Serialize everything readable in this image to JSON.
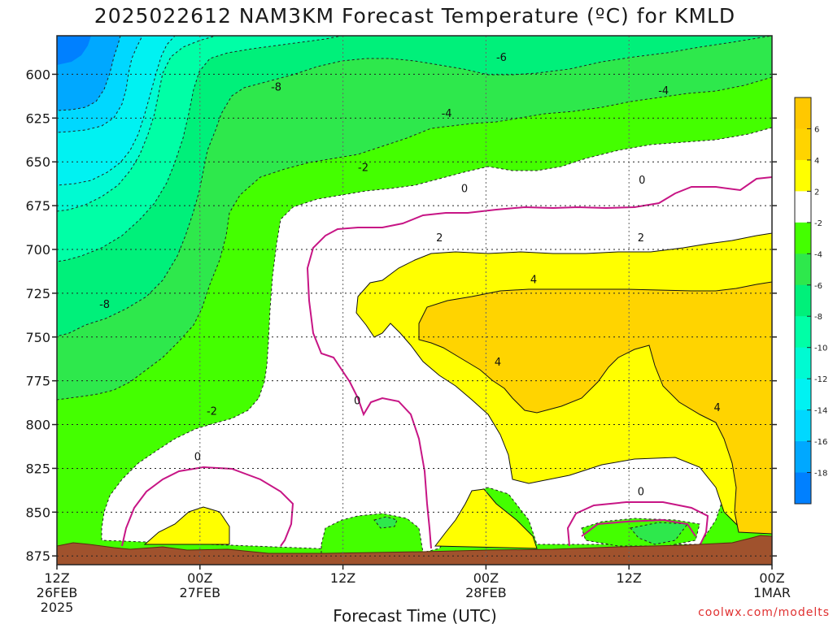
{
  "chart_data": {
    "type": "filled-contour",
    "title": "2025022612  NAM3KM Forecast Temperature (ºC) for KMLD",
    "xlabel": "Forecast Time (UTC)",
    "ylabel": "",
    "credit": "coolwx.com/modelts",
    "y_axis": {
      "scale": "pressure",
      "ylim": [
        880,
        578
      ],
      "ticks": [
        "600",
        "625",
        "650",
        "675",
        "700",
        "725",
        "750",
        "775",
        "800",
        "825",
        "850",
        "875"
      ]
    },
    "x_axis": {
      "xlim": [
        "2025-02-26 12Z",
        "2025-03-01 00Z"
      ],
      "ticks": [
        {
          "hours": 0,
          "l1": "12Z",
          "l2": "26FEB",
          "l3": "2025"
        },
        {
          "hours": 12,
          "l1": "00Z",
          "l2": "27FEB",
          "l3": ""
        },
        {
          "hours": 24,
          "l1": "12Z",
          "l2": "",
          "l3": ""
        },
        {
          "hours": 36,
          "l1": "00Z",
          "l2": "28FEB",
          "l3": ""
        },
        {
          "hours": 48,
          "l1": "12Z",
          "l2": "",
          "l3": ""
        },
        {
          "hours": 60,
          "l1": "00Z",
          "l2": "1MAR",
          "l3": ""
        }
      ]
    },
    "grid": true,
    "contour_labels": [
      {
        "text": "-6",
        "hours": 37.3,
        "p": 590
      },
      {
        "text": "-8",
        "hours": 18.4,
        "p": 607
      },
      {
        "text": "-4",
        "hours": 50.9,
        "p": 609
      },
      {
        "text": "-4",
        "hours": 32.7,
        "p": 622
      },
      {
        "text": "-2",
        "hours": 25.7,
        "p": 653
      },
      {
        "text": "0",
        "hours": 34.2,
        "p": 665
      },
      {
        "text": "0",
        "hours": 49.1,
        "p": 660
      },
      {
        "text": "2",
        "hours": 32.1,
        "p": 693
      },
      {
        "text": "2",
        "hours": 49.0,
        "p": 693
      },
      {
        "text": "4",
        "hours": 40.0,
        "p": 717
      },
      {
        "text": "-8",
        "hours": 4.0,
        "p": 731
      },
      {
        "text": "4",
        "hours": 37.0,
        "p": 764
      },
      {
        "text": "0",
        "hours": 25.2,
        "p": 786
      },
      {
        "text": "4",
        "hours": 55.4,
        "p": 790
      },
      {
        "text": "-2",
        "hours": 13.0,
        "p": 792
      },
      {
        "text": "0",
        "hours": 11.8,
        "p": 818
      },
      {
        "text": "0",
        "hours": 49.0,
        "p": 838
      }
    ],
    "colorbar": {
      "labels": [
        "6",
        "4",
        "2",
        "-2",
        "-4",
        "-6",
        "-8",
        "-10",
        "-12",
        "-14",
        "-16",
        "-18"
      ],
      "bins": [
        {
          "range": "> 6",
          "color": "#ffc800"
        },
        {
          "range": "4 to 6",
          "color": "#ffd400"
        },
        {
          "range": "2 to 4",
          "color": "#ffff00"
        },
        {
          "range": "-2 to 2",
          "color": "#ffffff"
        },
        {
          "range": "-4 to -2",
          "color": "#44ff00"
        },
        {
          "range": "-6 to -4",
          "color": "#2ee84c"
        },
        {
          "range": "-8 to -6",
          "color": "#00f07a"
        },
        {
          "range": "-10 to -8",
          "color": "#00ffa6"
        },
        {
          "range": "-12 to -10",
          "color": "#00fad2"
        },
        {
          "range": "-14 to -12",
          "color": "#00f2f2"
        },
        {
          "range": "-16 to -14",
          "color": "#00d8ff"
        },
        {
          "range": "-18 to -16",
          "color": "#00a8ff"
        },
        {
          "range": "< -18",
          "color": "#0080ff"
        }
      ]
    },
    "ground_color": "#a0522d",
    "freezing_line_color": "#c71585"
  }
}
